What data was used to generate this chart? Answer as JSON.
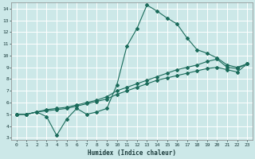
{
  "xlabel": "Humidex (Indice chaleur)",
  "bg_color": "#cce8e8",
  "grid_color": "#ffffff",
  "line_color": "#1a6b5a",
  "xlim": [
    -0.5,
    23.5
  ],
  "ylim": [
    2.8,
    14.5
  ],
  "xticks": [
    0,
    1,
    2,
    3,
    4,
    5,
    6,
    7,
    8,
    9,
    10,
    11,
    12,
    13,
    14,
    15,
    16,
    17,
    18,
    19,
    20,
    21,
    22,
    23
  ],
  "yticks": [
    3,
    4,
    5,
    6,
    7,
    8,
    9,
    10,
    11,
    12,
    13,
    14
  ],
  "line1_x": [
    0,
    1,
    2,
    3,
    4,
    5,
    6,
    7,
    8,
    9,
    10,
    11,
    12,
    13,
    14,
    15,
    16,
    17,
    18,
    19,
    20,
    21,
    22,
    23
  ],
  "line1_y": [
    5.0,
    5.0,
    5.2,
    4.8,
    3.2,
    4.6,
    5.5,
    5.0,
    5.2,
    5.5,
    7.5,
    10.8,
    12.3,
    14.3,
    13.8,
    13.2,
    12.7,
    11.5,
    10.5,
    10.2,
    9.8,
    9.2,
    9.0,
    9.3
  ],
  "line2_x": [
    0,
    1,
    2,
    3,
    4,
    5,
    6,
    7,
    8,
    9,
    10,
    11,
    12,
    13,
    14,
    15,
    16,
    17,
    18,
    19,
    20,
    21,
    22,
    23
  ],
  "line2_y": [
    5.0,
    5.0,
    5.2,
    5.4,
    5.5,
    5.6,
    5.8,
    6.0,
    6.2,
    6.5,
    7.0,
    7.3,
    7.6,
    7.9,
    8.2,
    8.5,
    8.8,
    9.0,
    9.2,
    9.5,
    9.7,
    9.0,
    8.9,
    9.3
  ],
  "line3_x": [
    0,
    1,
    2,
    3,
    4,
    5,
    6,
    7,
    8,
    9,
    10,
    11,
    12,
    13,
    14,
    15,
    16,
    17,
    18,
    19,
    20,
    21,
    22,
    23
  ],
  "line3_y": [
    5.0,
    5.0,
    5.2,
    5.3,
    5.4,
    5.5,
    5.7,
    5.9,
    6.1,
    6.3,
    6.7,
    7.0,
    7.3,
    7.6,
    7.9,
    8.1,
    8.3,
    8.5,
    8.7,
    8.9,
    9.0,
    8.8,
    8.6,
    9.3
  ],
  "tick_fontsize": 4.5,
  "xlabel_fontsize": 5.5
}
